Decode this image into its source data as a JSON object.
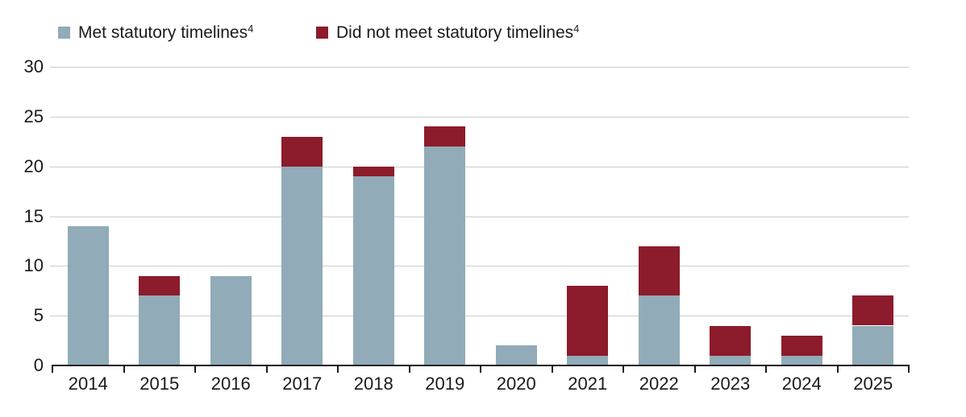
{
  "page": {
    "background": "#ffffff",
    "text_color": "#1a1a1a",
    "gridline_color": "#cccccc"
  },
  "legend": {
    "items": [
      {
        "label": "Met statutory timelines",
        "sup": "4",
        "color": "#91ABB8"
      },
      {
        "label": "Did not meet statutory timelines",
        "sup": "4",
        "color": "#8C1B2B"
      }
    ]
  },
  "chart_data": {
    "type": "bar",
    "stacked": true,
    "title": "",
    "xlabel": "",
    "ylabel": "",
    "categories": [
      "2014",
      "2015",
      "2016",
      "2017",
      "2018",
      "2019",
      "2020",
      "2021",
      "2022",
      "2023",
      "2024",
      "2025"
    ],
    "series": [
      {
        "name": "Met statutory timelines",
        "color": "#91ABB8",
        "values": [
          14,
          7,
          9,
          20,
          19,
          22,
          2,
          1,
          7,
          1,
          1,
          4
        ]
      },
      {
        "name": "Did not meet statutory timelines",
        "color": "#8C1B2B",
        "values": [
          0,
          2,
          0,
          3,
          1,
          2,
          0,
          7,
          5,
          3,
          2,
          3
        ]
      }
    ],
    "totals": [
      14,
      9,
      9,
      23,
      20,
      24,
      2,
      8,
      12,
      4,
      3,
      7
    ],
    "ylim": [
      0,
      30
    ],
    "yticks": [
      0,
      5,
      10,
      15,
      20,
      25,
      30
    ],
    "grid": true,
    "legend_position": "top"
  }
}
